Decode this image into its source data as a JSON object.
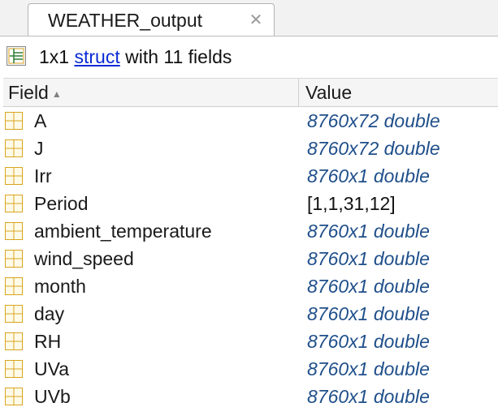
{
  "tab": {
    "title": "WEATHER_output",
    "close_glyph": "✕"
  },
  "info": {
    "prefix": "1x1 ",
    "link": "struct",
    "suffix": " with 11 fields",
    "icon": "struct-icon"
  },
  "table": {
    "headers": {
      "field": "Field",
      "sort_glyph": "▲",
      "value": "Value"
    },
    "rows": [
      {
        "name": "A",
        "value": "8760x72 double",
        "style": "typed"
      },
      {
        "name": "J",
        "value": "8760x72 double",
        "style": "typed"
      },
      {
        "name": "Irr",
        "value": "8760x1 double",
        "style": "typed"
      },
      {
        "name": "Period",
        "value": "[1,1,31,12]",
        "style": "literal"
      },
      {
        "name": "ambient_temperature",
        "value": "8760x1 double",
        "style": "typed"
      },
      {
        "name": "wind_speed",
        "value": "8760x1 double",
        "style": "typed"
      },
      {
        "name": "month",
        "value": "8760x1 double",
        "style": "typed"
      },
      {
        "name": "day",
        "value": "8760x1 double",
        "style": "typed"
      },
      {
        "name": "RH",
        "value": "8760x1 double",
        "style": "typed"
      },
      {
        "name": "UVa",
        "value": "8760x1 double",
        "style": "typed"
      },
      {
        "name": "UVb",
        "value": "8760x1 double",
        "style": "typed"
      }
    ]
  },
  "colors": {
    "typed_value": "#1f4f8a",
    "link": "#0a2bd6",
    "grid_icon": "#e6b84a"
  }
}
